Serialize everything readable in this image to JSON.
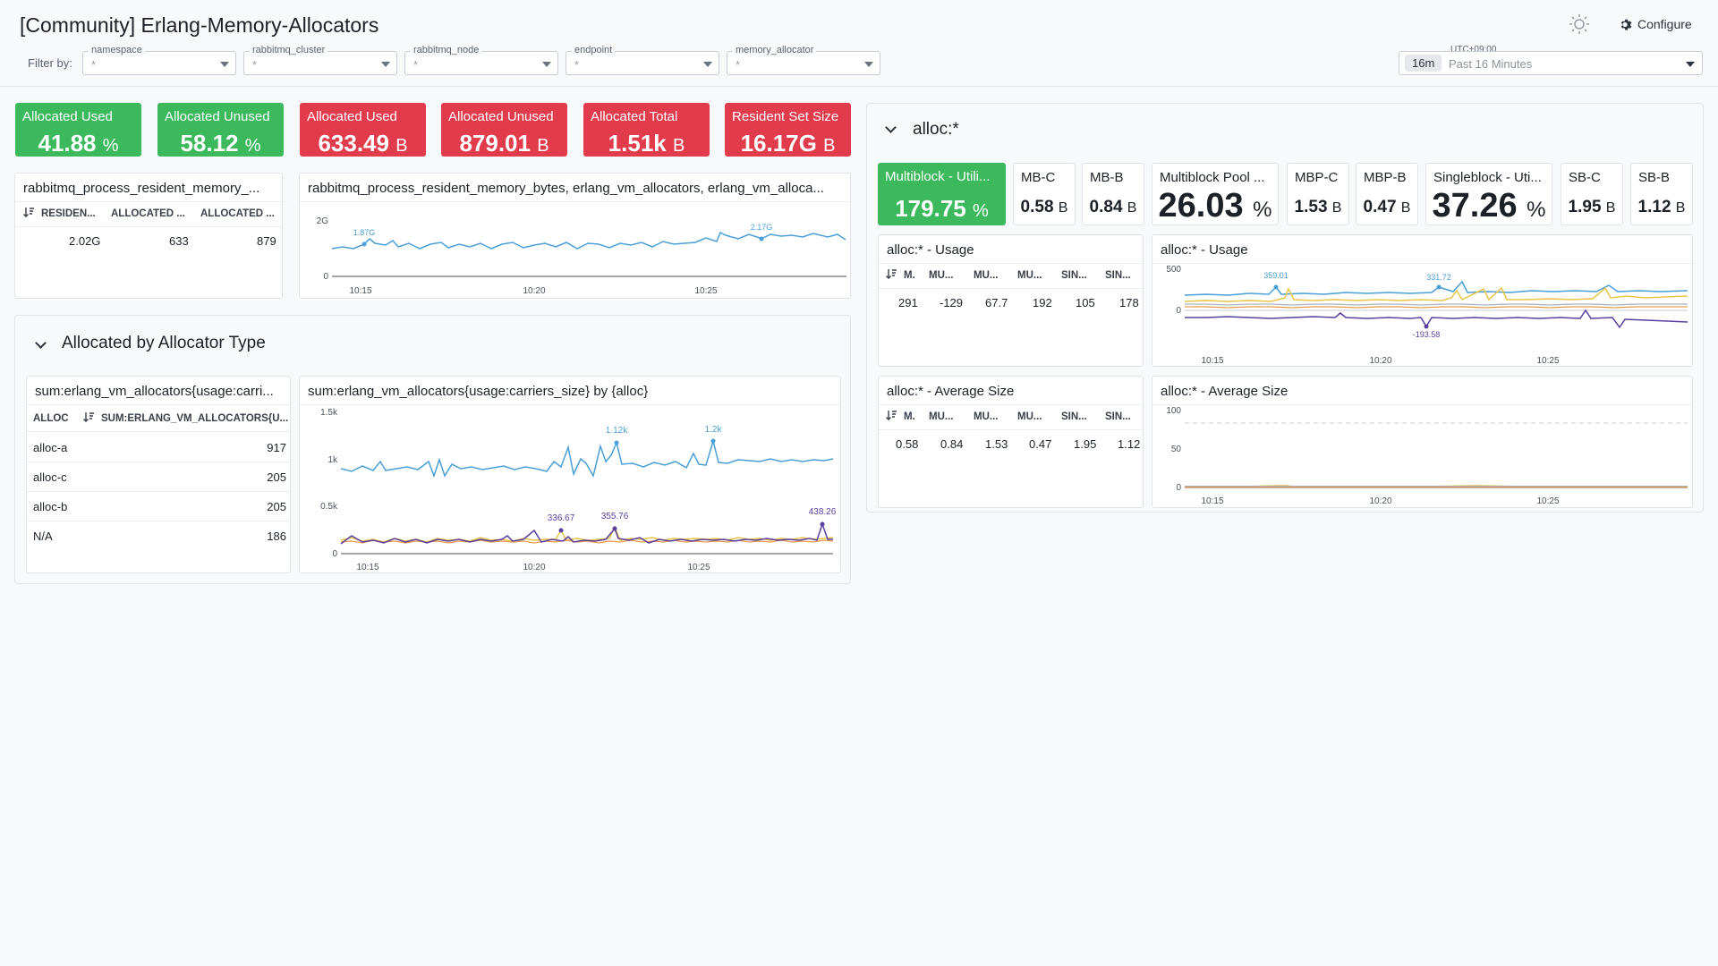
{
  "header": {
    "title": "[Community] Erlang-Memory-Allocators",
    "filter_label": "Filter by:",
    "filters": [
      {
        "name": "namespace",
        "value": "*"
      },
      {
        "name": "rabbitmq_cluster",
        "value": "*"
      },
      {
        "name": "rabbitmq_node",
        "value": "*"
      },
      {
        "name": "endpoint",
        "value": "*"
      },
      {
        "name": "memory_allocator",
        "value": "*"
      }
    ],
    "configure_label": "Configure",
    "timezone": "UTC+09:00",
    "time_pill": "16m",
    "time_label": "Past 16 Minutes"
  },
  "top_values": [
    {
      "title": "Allocated Used",
      "value": "41.88",
      "unit": "%",
      "color": "#3cb95d"
    },
    {
      "title": "Allocated Unused",
      "value": "58.12",
      "unit": "%",
      "color": "#3cb95d"
    },
    {
      "title": "Allocated Used",
      "value": "633.49",
      "unit": "B",
      "color": "#e23c4c"
    },
    {
      "title": "Allocated Unused",
      "value": "879.01",
      "unit": "B",
      "color": "#e23c4c"
    },
    {
      "title": "Allocated Total",
      "value": "1.51k",
      "unit": "B",
      "color": "#e23c4c"
    },
    {
      "title": "Resident Set Size",
      "value": "16.17G",
      "unit": "B",
      "color": "#e23c4c"
    }
  ],
  "resident_table": {
    "title": "rabbitmq_process_resident_memory_...",
    "headers": [
      "RESIDEN...",
      "ALLOCATED ...",
      "ALLOCATED ..."
    ],
    "row": [
      "2.02G",
      "633",
      "879"
    ]
  },
  "resident_chart": {
    "title": "rabbitmq_process_resident_memory_bytes, erlang_vm_allocators, erlang_vm_alloca...",
    "y_ticks": [
      "2G",
      "0"
    ],
    "x_ticks": [
      "10:15",
      "10:20",
      "10:25"
    ],
    "annotations": [
      "1.87G",
      "2.17G"
    ]
  },
  "allocated_group": {
    "title": "Allocated by Allocator Type",
    "table": {
      "title": "sum:erlang_vm_allocators{usage:carri...",
      "headers": [
        "ALLOC",
        "SUM:ERLANG_VM_ALLOCATORS{U..."
      ],
      "rows": [
        {
          "alloc": "alloc-a",
          "value": "917"
        },
        {
          "alloc": "alloc-c",
          "value": "205"
        },
        {
          "alloc": "alloc-b",
          "value": "205"
        },
        {
          "alloc": "N/A",
          "value": "186"
        }
      ]
    },
    "chart": {
      "title": "sum:erlang_vm_allocators{usage:carriers_size} by {alloc}",
      "y_ticks": [
        "1.5k",
        "1k",
        "0.5k",
        "0"
      ],
      "x_ticks": [
        "10:15",
        "10:20",
        "10:25"
      ],
      "annotations": [
        "1.12k",
        "1.2k",
        "336.67",
        "355.76",
        "438.26"
      ]
    }
  },
  "alloc_group": {
    "title": "alloc:*",
    "values": [
      {
        "title": "Multiblock - Utili...",
        "value": "179.75",
        "unit": "%",
        "color": "#3cb95d"
      },
      {
        "title": "MB-C",
        "value": "0.58",
        "unit": "B"
      },
      {
        "title": "MB-B",
        "value": "0.84",
        "unit": "B"
      },
      {
        "title": "Multiblock Pool ...",
        "value": "26.03",
        "unit": "%"
      },
      {
        "title": "MBP-C",
        "value": "1.53",
        "unit": "B"
      },
      {
        "title": "MBP-B",
        "value": "0.47",
        "unit": "B"
      },
      {
        "title": "Singleblock - Uti...",
        "value": "37.26",
        "unit": "%"
      },
      {
        "title": "SB-C",
        "value": "1.95",
        "unit": "B"
      },
      {
        "title": "SB-B",
        "value": "1.12",
        "unit": "B"
      }
    ],
    "usage_table": {
      "title": "alloc:* - Usage",
      "headers": [
        "M.",
        "MU...",
        "MU...",
        "MU...",
        "SIN...",
        "SIN..."
      ],
      "row": [
        "291",
        "-129",
        "67.7",
        "192",
        "105",
        "178"
      ]
    },
    "usage_chart": {
      "title": "alloc:* - Usage",
      "y_ticks": [
        "500",
        "0"
      ],
      "x_ticks": [
        "10:15",
        "10:20",
        "10:25"
      ],
      "annotations": [
        "359.01",
        "331.72",
        "-193.58"
      ]
    },
    "avg_table": {
      "title": "alloc:* - Average Size",
      "headers": [
        "M.",
        "MU...",
        "MU...",
        "MU...",
        "SIN...",
        "SIN..."
      ],
      "row": [
        "0.58",
        "0.84",
        "1.53",
        "0.47",
        "1.95",
        "1.12"
      ]
    },
    "avg_chart": {
      "title": "alloc:* - Average Size",
      "y_ticks": [
        "100",
        "50",
        "0"
      ],
      "x_ticks": [
        "10:15",
        "10:20",
        "10:25"
      ]
    }
  },
  "colors": {
    "series_blue": "#4a9fd6",
    "series_purple": "#5a3fa0",
    "series_yellow": "#e8c547",
    "series_orange": "#e89a4a",
    "series_gray": "#a7b3c2"
  }
}
